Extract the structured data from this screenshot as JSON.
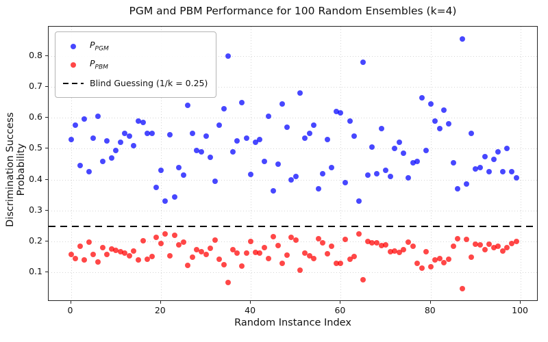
{
  "title": "PGM and PBM Performance for 100 Random Ensembles (k=4)",
  "axes": {
    "xlabel": "Random Instance Index",
    "ylabel": "Discrimination Success Probability",
    "x_tick_labels": [
      "0",
      "20",
      "40",
      "60",
      "80",
      "100"
    ],
    "y_tick_labels": [
      "0.1",
      "0.2",
      "0.3",
      "0.4",
      "0.5",
      "0.6",
      "0.7",
      "0.8"
    ]
  },
  "legend": {
    "pgm": {
      "main": "P",
      "sub": "PGM"
    },
    "pbm": {
      "main": "P",
      "sub": "PBM"
    },
    "blind": "Blind Guessing (1/k = 0.25)"
  },
  "colors": {
    "pgm": "rgba(0,0,255,0.72)",
    "pbm": "rgba(255,0,0,0.72)",
    "reference": "#000000",
    "grid": "#d4d4d4"
  },
  "chart_data": {
    "type": "scatter",
    "title": "PGM and PBM Performance for 100 Random Ensembles (k=4)",
    "xlabel": "Random Instance Index",
    "ylabel": "Discrimination Success Probability",
    "x_start": 0,
    "x_step": 1,
    "n_points": 100,
    "xlim": [
      -4.95,
      103.95
    ],
    "ylim": [
      0.006,
      0.894
    ],
    "x_tick_values": [
      0,
      20,
      40,
      60,
      80,
      100
    ],
    "y_tick_values": [
      0.1,
      0.2,
      0.3,
      0.4,
      0.5,
      0.6,
      0.7,
      0.8
    ],
    "grid": true,
    "legend_position": "upper left",
    "reference_line": {
      "label": "Blind Guessing (1/k = 0.25)",
      "y": 0.25,
      "style": "dashed",
      "color": "#000000"
    },
    "series": [
      {
        "name": "P_PGM",
        "color": "#0000ff",
        "alpha": 0.7,
        "values": [
          0.53,
          0.575,
          0.445,
          0.595,
          0.425,
          0.535,
          0.605,
          0.46,
          0.525,
          0.47,
          0.495,
          0.52,
          0.55,
          0.54,
          0.51,
          0.59,
          0.585,
          0.55,
          0.55,
          0.375,
          0.43,
          0.33,
          0.545,
          0.345,
          0.44,
          0.415,
          0.64,
          0.55,
          0.495,
          0.49,
          0.54,
          0.473,
          0.395,
          0.577,
          0.63,
          0.8,
          0.49,
          0.525,
          0.65,
          0.535,
          0.417,
          0.52,
          0.53,
          0.46,
          0.605,
          0.365,
          0.45,
          0.645,
          0.57,
          0.4,
          0.41,
          0.68,
          0.535,
          0.55,
          0.575,
          0.37,
          0.42,
          0.53,
          0.44,
          0.62,
          0.615,
          0.39,
          0.59,
          0.54,
          0.33,
          0.78,
          0.415,
          0.505,
          0.42,
          0.565,
          0.43,
          0.41,
          0.5,
          0.52,
          0.485,
          0.405,
          0.455,
          0.46,
          0.665,
          0.495,
          0.645,
          0.59,
          0.565,
          0.625,
          0.58,
          0.455,
          0.37,
          0.855,
          0.385,
          0.55,
          0.435,
          0.44,
          0.475,
          0.425,
          0.465,
          0.49,
          0.425,
          0.5,
          0.425,
          0.405
        ]
      },
      {
        "name": "P_PBM",
        "color": "#ff0000",
        "alpha": 0.7,
        "values": [
          0.158,
          0.145,
          0.186,
          0.14,
          0.199,
          0.158,
          0.135,
          0.181,
          0.158,
          0.177,
          0.171,
          0.167,
          0.163,
          0.155,
          0.17,
          0.14,
          0.202,
          0.142,
          0.153,
          0.214,
          0.194,
          0.225,
          0.155,
          0.22,
          0.19,
          0.198,
          0.124,
          0.15,
          0.173,
          0.168,
          0.158,
          0.178,
          0.206,
          0.144,
          0.126,
          0.067,
          0.173,
          0.162,
          0.122,
          0.162,
          0.2,
          0.166,
          0.164,
          0.18,
          0.145,
          0.215,
          0.187,
          0.129,
          0.157,
          0.214,
          0.205,
          0.107,
          0.162,
          0.155,
          0.146,
          0.21,
          0.196,
          0.16,
          0.186,
          0.129,
          0.129,
          0.207,
          0.144,
          0.151,
          0.225,
          0.077,
          0.2,
          0.196,
          0.195,
          0.188,
          0.19,
          0.167,
          0.17,
          0.166,
          0.175,
          0.198,
          0.185,
          0.129,
          0.114,
          0.168,
          0.118,
          0.14,
          0.146,
          0.131,
          0.142,
          0.185,
          0.21,
          0.048,
          0.208,
          0.15,
          0.192,
          0.19,
          0.174,
          0.192,
          0.18,
          0.186,
          0.17,
          0.18,
          0.193,
          0.2
        ]
      }
    ]
  }
}
